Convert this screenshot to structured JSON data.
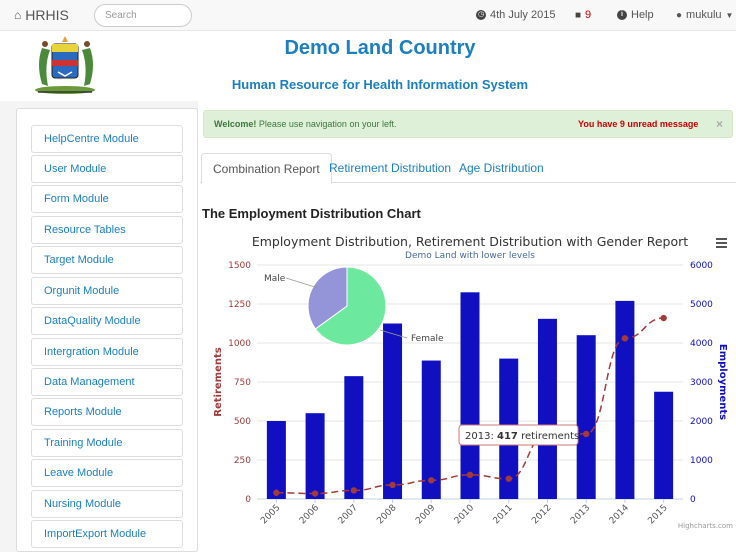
{
  "navbar": {
    "brand": "HRHIS",
    "search_placeholder": "Search",
    "date": "4th July 2015",
    "message_count": "9",
    "help": "Help",
    "user": "mukulu"
  },
  "header": {
    "title": "Demo Land Country",
    "subtitle": "Human Resource for Health Information System"
  },
  "sidebar": {
    "items": [
      {
        "label": "HelpCentre Module"
      },
      {
        "label": "User Module"
      },
      {
        "label": "Form Module"
      },
      {
        "label": "Resource Tables"
      },
      {
        "label": "Target Module"
      },
      {
        "label": "Orgunit Module"
      },
      {
        "label": "DataQuality Module"
      },
      {
        "label": "Intergration Module"
      },
      {
        "label": "Data Management"
      },
      {
        "label": "Reports Module"
      },
      {
        "label": "Training Module"
      },
      {
        "label": "Leave Module"
      },
      {
        "label": "Nursing Module"
      },
      {
        "label": "ImportExport Module"
      }
    ]
  },
  "alert": {
    "welcome": "Welcome!",
    "text": "Please use navigation on your left.",
    "unread": "You have 9 unread message",
    "close": "×"
  },
  "tabs": [
    {
      "label": "Combination Report"
    },
    {
      "label": "Retirement Distribution"
    },
    {
      "label": "Age Distribution"
    }
  ],
  "section_title": "The Employment Distribution Chart",
  "chart_data": {
    "type": "bar",
    "title": "Employment Distribution, Retirement Distribution with Gender Report",
    "subtitle": "Demo Land with lower levels",
    "categories": [
      "2005",
      "2006",
      "2007",
      "2008",
      "2009",
      "2010",
      "2011",
      "2012",
      "2013",
      "2014",
      "2015"
    ],
    "series": [
      {
        "name": "Employments",
        "type": "bar",
        "axis": "right",
        "color": "#1010c0",
        "values": [
          2000,
          2200,
          3150,
          4500,
          3550,
          5300,
          3600,
          4620,
          4200,
          5080,
          2750
        ]
      },
      {
        "name": "Retirements",
        "type": "line",
        "axis": "left",
        "color": "#a33a3a",
        "values": [
          40,
          35,
          55,
          90,
          120,
          155,
          130,
          420,
          417,
          1030,
          1160
        ]
      },
      {
        "name": "Gender",
        "type": "pie",
        "slices": [
          {
            "label": "Male",
            "value": 35,
            "color": "#9494d8"
          },
          {
            "label": "Female",
            "value": 65,
            "color": "#6de89f"
          }
        ]
      }
    ],
    "y_left": {
      "label": "Retirements",
      "ticks": [
        0,
        250,
        500,
        750,
        1000,
        1250,
        1500
      ],
      "range": [
        0,
        1500
      ]
    },
    "y_right": {
      "label": "Employments",
      "ticks": [
        0,
        1000,
        2000,
        3000,
        4000,
        5000,
        6000
      ],
      "range": [
        0,
        6000
      ]
    },
    "tooltip": {
      "year": "2013:",
      "value": "417",
      "suffix": "retirements"
    },
    "credits": "Highcharts.com",
    "menu_icon": "hamburger-menu-icon"
  }
}
